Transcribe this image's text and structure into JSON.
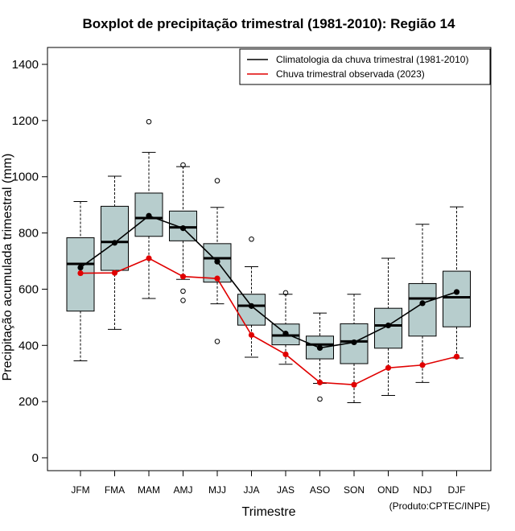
{
  "chart_data": {
    "type": "boxplot",
    "title": "Boxplot de precipitação trimestral (1981-2010): Região 14",
    "xlabel": "Trimestre",
    "ylabel": "Precipitação acumulada trimestral (mm)",
    "ylim": [
      -50,
      1460
    ],
    "yticks": [
      0,
      200,
      400,
      600,
      800,
      1000,
      1200,
      1400
    ],
    "categories": [
      "JFM",
      "FMA",
      "MAM",
      "AMJ",
      "MJJ",
      "JJA",
      "JAS",
      "ASO",
      "SON",
      "OND",
      "NDJ",
      "DJF"
    ],
    "boxes": [
      {
        "whisker_low": 345,
        "q1": 522,
        "median": 690,
        "q3": 783,
        "whisker_high": 912,
        "outliers": []
      },
      {
        "whisker_low": 457,
        "q1": 667,
        "median": 768,
        "q3": 895,
        "whisker_high": 1002,
        "outliers": []
      },
      {
        "whisker_low": 567,
        "q1": 788,
        "median": 853,
        "q3": 942,
        "whisker_high": 1087,
        "outliers": [
          1196
        ]
      },
      {
        "whisker_low": 635,
        "q1": 772,
        "median": 820,
        "q3": 878,
        "whisker_high": 1036,
        "outliers": [
          1042,
          593,
          560
        ]
      },
      {
        "whisker_low": 548,
        "q1": 625,
        "median": 710,
        "q3": 762,
        "whisker_high": 891,
        "outliers": [
          986,
          414
        ]
      },
      {
        "whisker_low": 358,
        "q1": 472,
        "median": 541,
        "q3": 582,
        "whisker_high": 680,
        "outliers": [
          778
        ]
      },
      {
        "whisker_low": 333,
        "q1": 402,
        "median": 435,
        "q3": 476,
        "whisker_high": 582,
        "outliers": [
          587
        ]
      },
      {
        "whisker_low": 265,
        "q1": 352,
        "median": 403,
        "q3": 433,
        "whisker_high": 515,
        "outliers": [
          209
        ]
      },
      {
        "whisker_low": 196,
        "q1": 335,
        "median": 414,
        "q3": 477,
        "whisker_high": 582,
        "outliers": []
      },
      {
        "whisker_low": 222,
        "q1": 390,
        "median": 471,
        "q3": 532,
        "whisker_high": 710,
        "outliers": []
      },
      {
        "whisker_low": 268,
        "q1": 433,
        "median": 567,
        "q3": 620,
        "whisker_high": 831,
        "outliers": []
      },
      {
        "whisker_low": 355,
        "q1": 466,
        "median": 571,
        "q3": 664,
        "whisker_high": 893,
        "outliers": []
      }
    ],
    "series": [
      {
        "name": "Climatologia da chuva trimestral (1981-2010)",
        "color": "#000000",
        "values": [
          677,
          765,
          861,
          817,
          698,
          540,
          442,
          391,
          411,
          471,
          550,
          590
        ]
      },
      {
        "name": "Chuva trimestral observada (2023)",
        "color": "#e00000",
        "values": [
          657,
          658,
          710,
          645,
          638,
          437,
          368,
          268,
          260,
          320,
          330,
          360
        ]
      }
    ],
    "legend_position": "top-right",
    "box_fill": "#b7cdcd",
    "credit": "(Produto:CPTEC/INPE)"
  }
}
